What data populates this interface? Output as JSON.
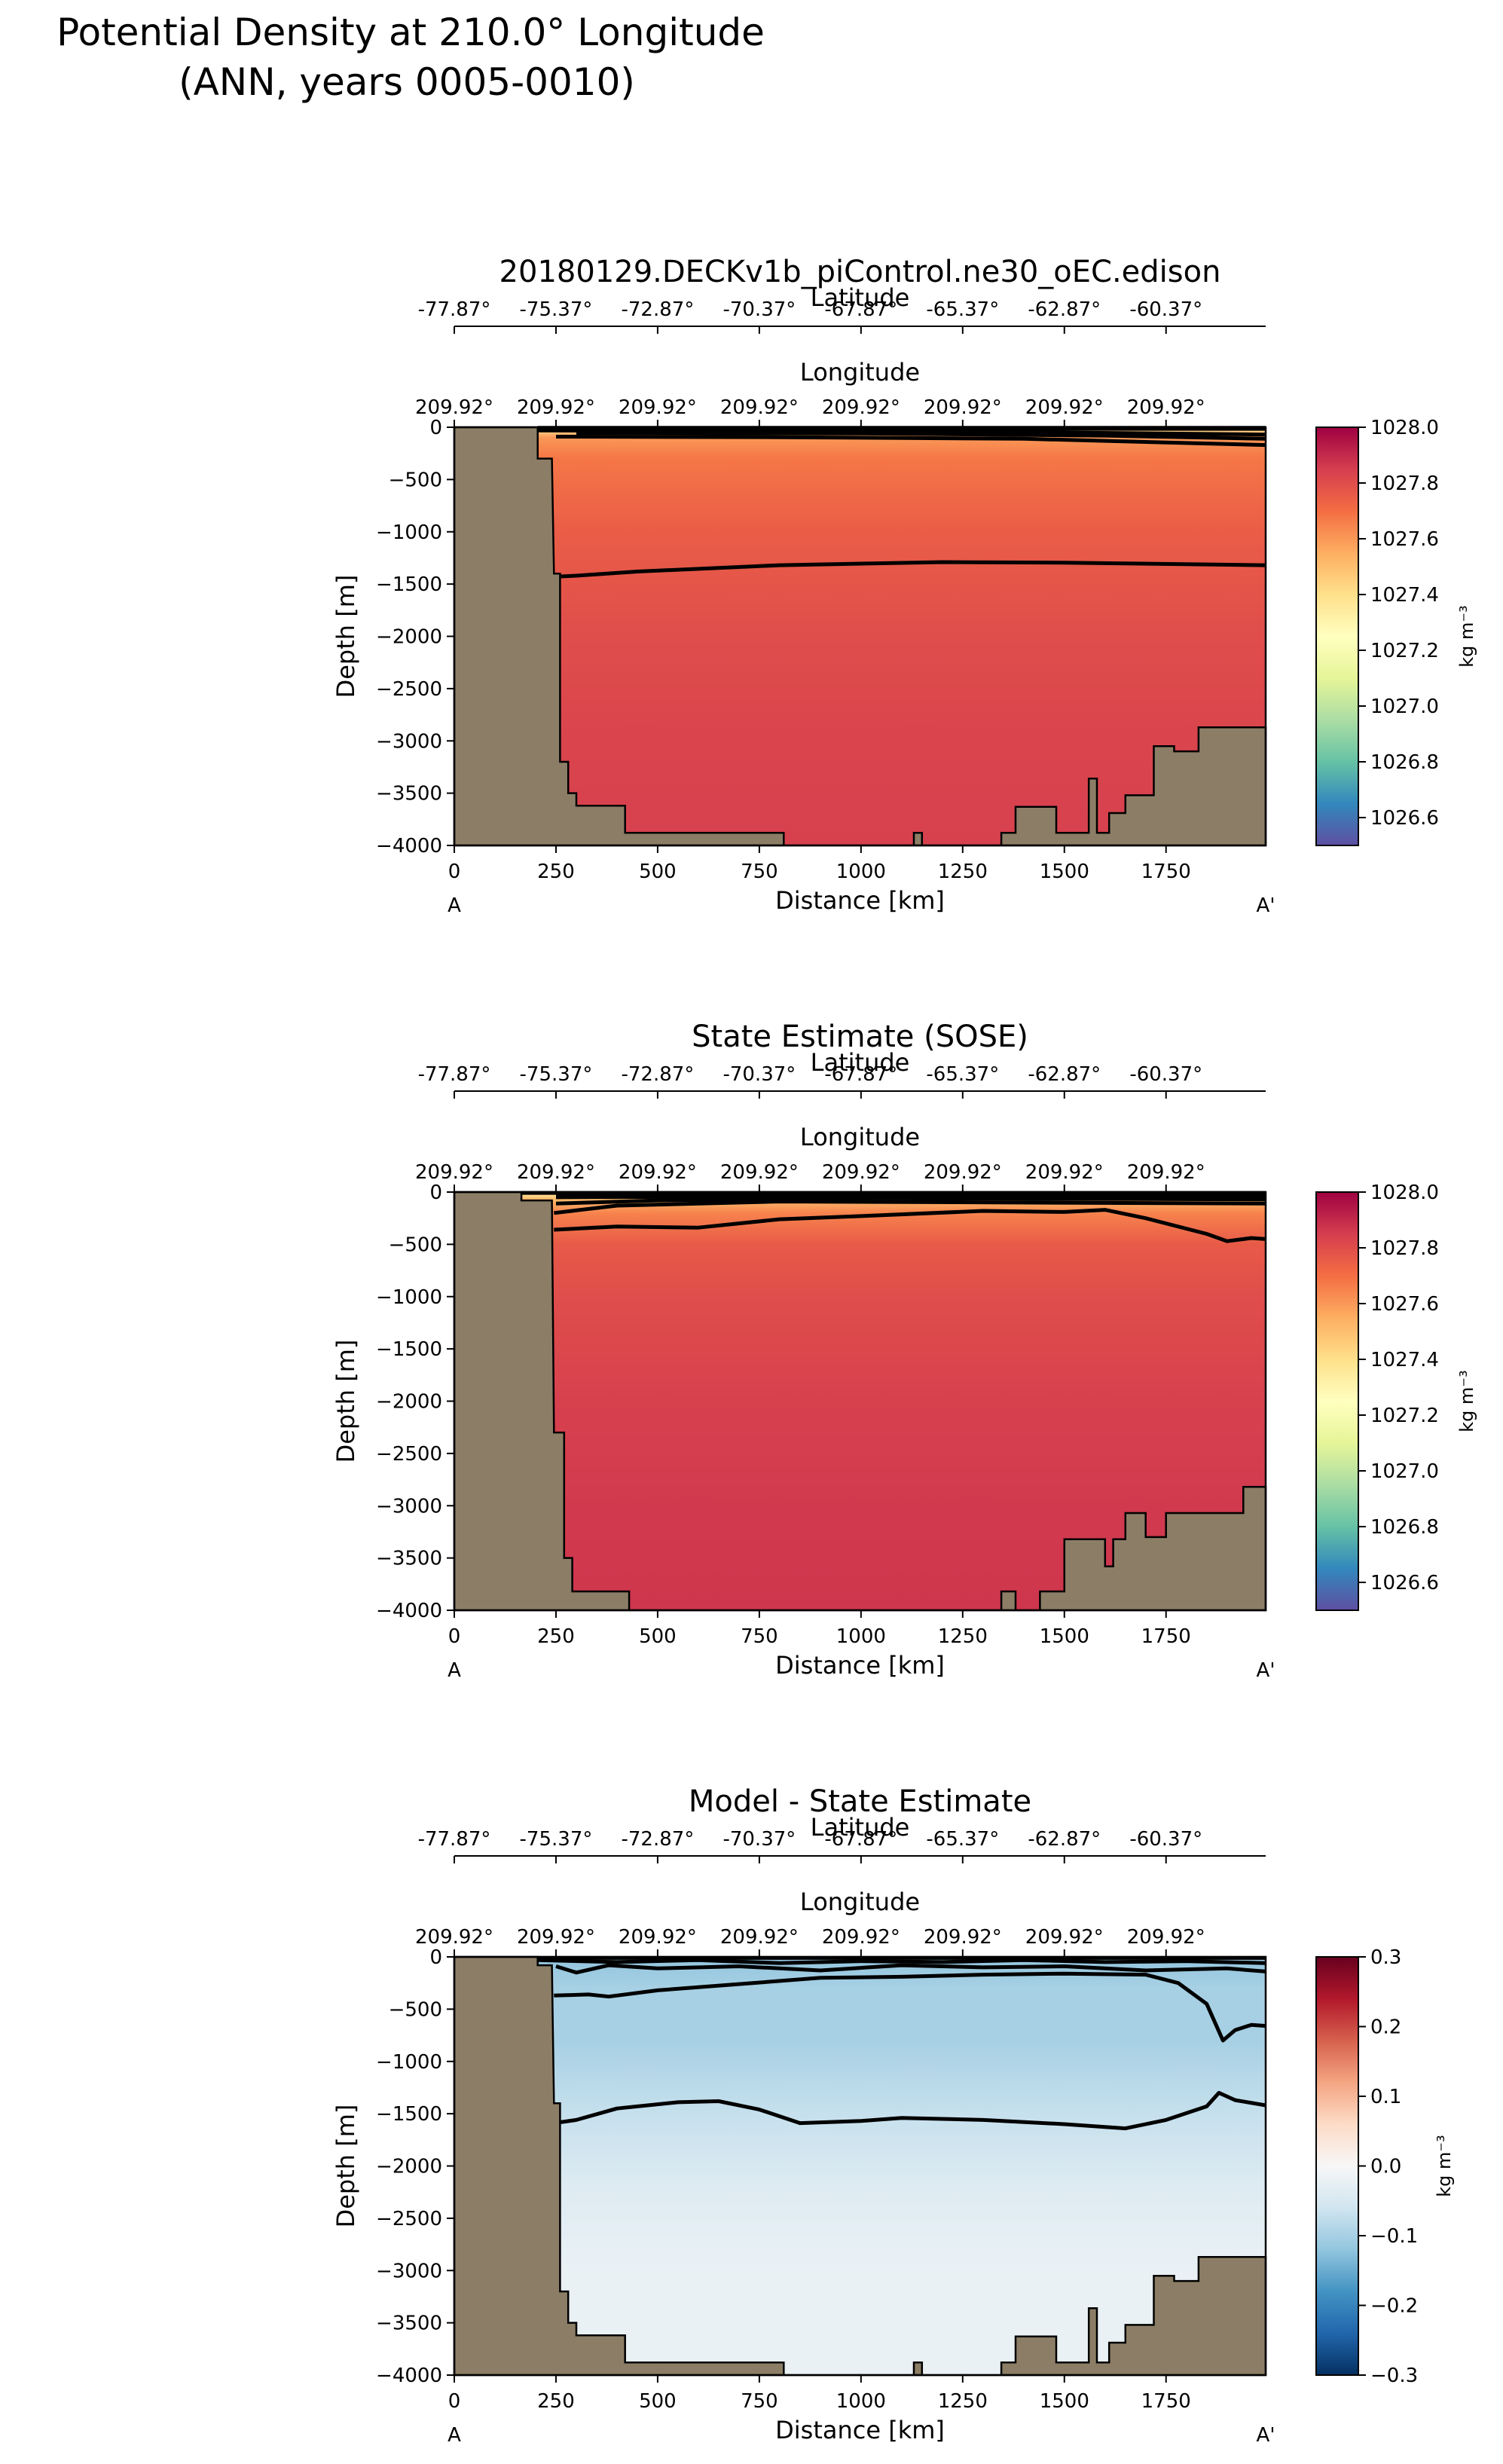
{
  "figure": {
    "title_line1": "Potential Density at 210.0° Longitude",
    "title_line2": "(ANN, years 0005-0010)"
  },
  "colors": {
    "land": "#8c7e66",
    "contour": "#000000",
    "density_cmap": [
      "#5e4fa2",
      "#3288bd",
      "#66c2a5",
      "#abdda4",
      "#e6f598",
      "#ffffbf",
      "#fee08b",
      "#fdae61",
      "#f46d43",
      "#d53e4f",
      "#9e0142"
    ],
    "diff_cmap": [
      "#053061",
      "#2166ac",
      "#4393c3",
      "#92c5de",
      "#d1e5f0",
      "#f7f7f7",
      "#fddbc7",
      "#f4a582",
      "#d6604d",
      "#b2182b",
      "#67001f"
    ]
  },
  "chart_data": [
    {
      "type": "heatmap",
      "title": "20180129.DECKv1b_piControl.ne30_oEC.edison",
      "xlabel": "Distance [km]",
      "ylabel": "Depth [m]",
      "xlim": [
        0,
        1995
      ],
      "ylim": [
        -4000,
        0
      ],
      "x_ticks": [
        0,
        250,
        500,
        750,
        1000,
        1250,
        1500,
        1750
      ],
      "y_ticks": [
        0,
        -500,
        -1000,
        -1500,
        -2000,
        -2500,
        -3000,
        -3500,
        -4000
      ],
      "section_start": "A",
      "section_end": "A'",
      "lat_label": "Latitude",
      "lat_ticks": [
        "-77.87°",
        "-75.37°",
        "-72.87°",
        "-70.37°",
        "-67.87°",
        "-65.37°",
        "-62.87°",
        "-60.37°"
      ],
      "lon_label": "Longitude",
      "lon_ticks": [
        "209.92°",
        "209.92°",
        "209.92°",
        "209.92°",
        "209.92°",
        "209.92°",
        "209.92°",
        "209.92°"
      ],
      "colorbar": {
        "label": "kg m⁻³",
        "vmin": 1026.5,
        "vmax": 1028.0,
        "ticks": [
          "1028.0",
          "1027.8",
          "1027.6",
          "1027.4",
          "1027.2",
          "1027.0",
          "1026.8",
          "1026.6"
        ],
        "tick_values": [
          1028.0,
          1027.8,
          1027.6,
          1027.4,
          1027.2,
          1027.0,
          1026.8,
          1026.6
        ]
      },
      "bathymetry": [
        [
          0,
          0
        ],
        [
          205,
          0
        ],
        [
          205,
          -300
        ],
        [
          240,
          -300
        ],
        [
          245,
          -1400
        ],
        [
          260,
          -1400
        ],
        [
          260,
          -3200
        ],
        [
          280,
          -3200
        ],
        [
          280,
          -3500
        ],
        [
          300,
          -3500
        ],
        [
          300,
          -3620
        ],
        [
          420,
          -3620
        ],
        [
          420,
          -3880
        ],
        [
          810,
          -3880
        ],
        [
          810,
          -4000
        ],
        [
          1130,
          -4000
        ],
        [
          1130,
          -3880
        ],
        [
          1150,
          -3880
        ],
        [
          1150,
          -4000
        ],
        [
          1345,
          -4000
        ],
        [
          1345,
          -3880
        ],
        [
          1380,
          -3880
        ],
        [
          1380,
          -3630
        ],
        [
          1480,
          -3630
        ],
        [
          1480,
          -3880
        ],
        [
          1560,
          -3880
        ],
        [
          1560,
          -3360
        ],
        [
          1580,
          -3360
        ],
        [
          1580,
          -3880
        ],
        [
          1610,
          -3880
        ],
        [
          1610,
          -3690
        ],
        [
          1650,
          -3690
        ],
        [
          1650,
          -3520
        ],
        [
          1720,
          -3520
        ],
        [
          1720,
          -3050
        ],
        [
          1770,
          -3050
        ],
        [
          1770,
          -3100
        ],
        [
          1830,
          -3100
        ],
        [
          1830,
          -2870
        ],
        [
          1995,
          -2870
        ]
      ],
      "fill_profile": [
        [
          0,
          1027.35
        ],
        [
          -100,
          1027.6
        ],
        [
          -300,
          1027.68
        ],
        [
          -1000,
          1027.75
        ],
        [
          -2000,
          1027.8
        ],
        [
          -3000,
          1027.83
        ],
        [
          -4000,
          1027.84
        ]
      ],
      "contours": [
        [
          [
            205,
            -5
          ],
          [
            1995,
            -5
          ]
        ],
        [
          [
            205,
            -15
          ],
          [
            1995,
            -15
          ]
        ],
        [
          [
            205,
            -30
          ],
          [
            600,
            -35
          ],
          [
            1200,
            -40
          ],
          [
            1995,
            -70
          ]
        ],
        [
          [
            300,
            -55
          ],
          [
            1000,
            -60
          ],
          [
            1600,
            -80
          ],
          [
            1995,
            -110
          ]
        ],
        [
          [
            250,
            -90
          ],
          [
            800,
            -95
          ],
          [
            1400,
            -110
          ],
          [
            1995,
            -170
          ]
        ],
        [
          [
            245,
            -1430
          ],
          [
            300,
            -1420
          ],
          [
            450,
            -1380
          ],
          [
            800,
            -1320
          ],
          [
            1200,
            -1290
          ],
          [
            1500,
            -1295
          ],
          [
            1800,
            -1310
          ],
          [
            1995,
            -1320
          ]
        ]
      ]
    },
    {
      "type": "heatmap",
      "title": "State Estimate (SOSE)",
      "xlabel": "Distance [km]",
      "ylabel": "Depth [m]",
      "xlim": [
        0,
        1995
      ],
      "ylim": [
        -4000,
        0
      ],
      "x_ticks": [
        0,
        250,
        500,
        750,
        1000,
        1250,
        1500,
        1750
      ],
      "y_ticks": [
        0,
        -500,
        -1000,
        -1500,
        -2000,
        -2500,
        -3000,
        -3500,
        -4000
      ],
      "section_start": "A",
      "section_end": "A'",
      "lat_label": "Latitude",
      "lat_ticks": [
        "-77.87°",
        "-75.37°",
        "-72.87°",
        "-70.37°",
        "-67.87°",
        "-65.37°",
        "-62.87°",
        "-60.37°"
      ],
      "lon_label": "Longitude",
      "lon_ticks": [
        "209.92°",
        "209.92°",
        "209.92°",
        "209.92°",
        "209.92°",
        "209.92°",
        "209.92°",
        "209.92°"
      ],
      "colorbar": {
        "label": "kg m⁻³",
        "vmin": 1026.5,
        "vmax": 1028.0,
        "ticks": [
          "1028.0",
          "1027.8",
          "1027.6",
          "1027.4",
          "1027.2",
          "1027.0",
          "1026.8",
          "1026.6"
        ],
        "tick_values": [
          1028.0,
          1027.8,
          1027.6,
          1027.4,
          1027.2,
          1027.0,
          1026.8,
          1026.6
        ]
      },
      "bathymetry": [
        [
          0,
          0
        ],
        [
          165,
          0
        ],
        [
          165,
          -80
        ],
        [
          240,
          -80
        ],
        [
          245,
          -2300
        ],
        [
          270,
          -2300
        ],
        [
          270,
          -3500
        ],
        [
          290,
          -3500
        ],
        [
          290,
          -3820
        ],
        [
          430,
          -3820
        ],
        [
          430,
          -4000
        ],
        [
          1345,
          -4000
        ],
        [
          1345,
          -3820
        ],
        [
          1380,
          -3820
        ],
        [
          1380,
          -4000
        ],
        [
          1440,
          -4000
        ],
        [
          1440,
          -3820
        ],
        [
          1500,
          -3820
        ],
        [
          1500,
          -3320
        ],
        [
          1600,
          -3320
        ],
        [
          1600,
          -3580
        ],
        [
          1620,
          -3580
        ],
        [
          1620,
          -3320
        ],
        [
          1650,
          -3320
        ],
        [
          1650,
          -3070
        ],
        [
          1700,
          -3070
        ],
        [
          1700,
          -3300
        ],
        [
          1750,
          -3300
        ],
        [
          1750,
          -3070
        ],
        [
          1940,
          -3070
        ],
        [
          1940,
          -2820
        ],
        [
          1995,
          -2820
        ]
      ],
      "fill_profile": [
        [
          0,
          1027.3
        ],
        [
          -60,
          1027.5
        ],
        [
          -200,
          1027.65
        ],
        [
          -500,
          1027.76
        ],
        [
          -1000,
          1027.8
        ],
        [
          -2000,
          1027.84
        ],
        [
          -3000,
          1027.86
        ],
        [
          -4000,
          1027.87
        ]
      ],
      "contours": [
        [
          [
            165,
            -8
          ],
          [
            1995,
            -8
          ]
        ],
        [
          [
            250,
            -20
          ],
          [
            700,
            -25
          ],
          [
            1995,
            -30
          ]
        ],
        [
          [
            250,
            -50
          ],
          [
            600,
            -45
          ],
          [
            1000,
            -40
          ],
          [
            1995,
            -45
          ]
        ],
        [
          [
            250,
            -110
          ],
          [
            500,
            -80
          ],
          [
            1000,
            -60
          ],
          [
            1995,
            -70
          ]
        ],
        [
          [
            245,
            -200
          ],
          [
            400,
            -130
          ],
          [
            800,
            -90
          ],
          [
            1995,
            -110
          ]
        ],
        [
          [
            245,
            -360
          ],
          [
            400,
            -330
          ],
          [
            600,
            -340
          ],
          [
            800,
            -260
          ],
          [
            1000,
            -230
          ],
          [
            1300,
            -180
          ],
          [
            1500,
            -190
          ],
          [
            1600,
            -170
          ],
          [
            1700,
            -250
          ],
          [
            1850,
            -400
          ],
          [
            1900,
            -470
          ],
          [
            1960,
            -440
          ],
          [
            1995,
            -450
          ]
        ]
      ]
    },
    {
      "type": "heatmap",
      "title": "Model - State Estimate",
      "xlabel": "Distance [km]",
      "ylabel": "Depth [m]",
      "xlim": [
        0,
        1995
      ],
      "ylim": [
        -4000,
        0
      ],
      "x_ticks": [
        0,
        250,
        500,
        750,
        1000,
        1250,
        1500,
        1750
      ],
      "y_ticks": [
        0,
        -500,
        -1000,
        -1500,
        -2000,
        -2500,
        -3000,
        -3500,
        -4000
      ],
      "section_start": "A",
      "section_end": "A'",
      "lat_label": "Latitude",
      "lat_ticks": [
        "-77.87°",
        "-75.37°",
        "-72.87°",
        "-70.37°",
        "-67.87°",
        "-65.37°",
        "-62.87°",
        "-60.37°"
      ],
      "lon_label": "Longitude",
      "lon_ticks": [
        "209.92°",
        "209.92°",
        "209.92°",
        "209.92°",
        "209.92°",
        "209.92°",
        "209.92°",
        "209.92°"
      ],
      "colorbar": {
        "label": "kg m⁻³",
        "vmin": -0.3,
        "vmax": 0.3,
        "ticks": [
          "0.3",
          "0.2",
          "0.1",
          "0.0",
          "−0.1",
          "−0.2",
          "−0.3"
        ],
        "tick_values": [
          0.3,
          0.2,
          0.1,
          0.0,
          -0.1,
          -0.2,
          -0.3
        ]
      },
      "bathymetry": [
        [
          0,
          0
        ],
        [
          205,
          0
        ],
        [
          205,
          -80
        ],
        [
          240,
          -80
        ],
        [
          245,
          -1400
        ],
        [
          260,
          -1400
        ],
        [
          260,
          -3200
        ],
        [
          280,
          -3200
        ],
        [
          280,
          -3500
        ],
        [
          300,
          -3500
        ],
        [
          300,
          -3620
        ],
        [
          420,
          -3620
        ],
        [
          420,
          -3880
        ],
        [
          810,
          -3880
        ],
        [
          810,
          -4000
        ],
        [
          1130,
          -4000
        ],
        [
          1130,
          -3880
        ],
        [
          1150,
          -3880
        ],
        [
          1150,
          -4000
        ],
        [
          1345,
          -4000
        ],
        [
          1345,
          -3880
        ],
        [
          1380,
          -3880
        ],
        [
          1380,
          -3630
        ],
        [
          1480,
          -3630
        ],
        [
          1480,
          -3880
        ],
        [
          1560,
          -3880
        ],
        [
          1560,
          -3360
        ],
        [
          1580,
          -3360
        ],
        [
          1580,
          -3880
        ],
        [
          1610,
          -3880
        ],
        [
          1610,
          -3690
        ],
        [
          1650,
          -3690
        ],
        [
          1650,
          -3520
        ],
        [
          1720,
          -3520
        ],
        [
          1720,
          -3050
        ],
        [
          1770,
          -3050
        ],
        [
          1770,
          -3100
        ],
        [
          1830,
          -3100
        ],
        [
          1830,
          -2870
        ],
        [
          1995,
          -2870
        ]
      ],
      "fill_profile": [
        [
          0,
          -0.12
        ],
        [
          -300,
          -0.1
        ],
        [
          -800,
          -0.1
        ],
        [
          -1500,
          -0.07
        ],
        [
          -2200,
          -0.04
        ],
        [
          -3000,
          -0.02
        ],
        [
          -4000,
          -0.02
        ]
      ],
      "contours": [
        [
          [
            205,
            -10
          ],
          [
            1995,
            -10
          ]
        ],
        [
          [
            205,
            -30
          ],
          [
            400,
            -50
          ],
          [
            600,
            -30
          ],
          [
            800,
            -60
          ],
          [
            1000,
            -40
          ],
          [
            1200,
            -50
          ],
          [
            1400,
            -30
          ],
          [
            1600,
            -50
          ],
          [
            1800,
            -40
          ],
          [
            1995,
            -60
          ]
        ],
        [
          [
            250,
            -90
          ],
          [
            300,
            -150
          ],
          [
            380,
            -80
          ],
          [
            500,
            -110
          ],
          [
            700,
            -90
          ],
          [
            900,
            -130
          ],
          [
            1100,
            -80
          ],
          [
            1300,
            -100
          ],
          [
            1500,
            -90
          ],
          [
            1700,
            -130
          ],
          [
            1900,
            -110
          ],
          [
            1995,
            -140
          ]
        ],
        [
          [
            245,
            -370
          ],
          [
            330,
            -360
          ],
          [
            380,
            -380
          ],
          [
            500,
            -320
          ],
          [
            700,
            -260
          ],
          [
            900,
            -200
          ],
          [
            1100,
            -190
          ],
          [
            1300,
            -170
          ],
          [
            1500,
            -160
          ],
          [
            1700,
            -170
          ],
          [
            1780,
            -250
          ],
          [
            1850,
            -450
          ],
          [
            1890,
            -800
          ],
          [
            1920,
            -700
          ],
          [
            1960,
            -650
          ],
          [
            1995,
            -660
          ]
        ],
        [
          [
            245,
            -1590
          ],
          [
            300,
            -1560
          ],
          [
            400,
            -1450
          ],
          [
            550,
            -1390
          ],
          [
            650,
            -1380
          ],
          [
            750,
            -1460
          ],
          [
            850,
            -1590
          ],
          [
            1000,
            -1570
          ],
          [
            1100,
            -1540
          ],
          [
            1300,
            -1560
          ],
          [
            1500,
            -1600
          ],
          [
            1650,
            -1640
          ],
          [
            1750,
            -1560
          ],
          [
            1850,
            -1430
          ],
          [
            1880,
            -1300
          ],
          [
            1920,
            -1370
          ],
          [
            1995,
            -1420
          ]
        ]
      ]
    }
  ]
}
